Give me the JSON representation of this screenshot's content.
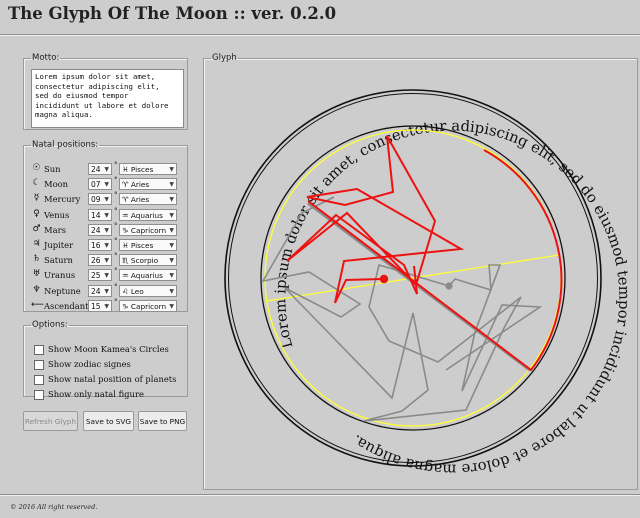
{
  "app": {
    "title": "The Glyph Of The Moon :: ver. 0.2.0"
  },
  "motto": {
    "legend": "Motto:",
    "text": "Lorem ipsum dolor sit amet,\nconsectetur adipiscing elit,\nsed do eiusmod tempor\nincididunt ut labore et dolore\nmagna aliqua."
  },
  "natal": {
    "legend": "Natal positions:",
    "degree_symbol": "°",
    "planets": [
      {
        "symbol": "☉",
        "icon": "sun-icon",
        "name": "Sun",
        "degree": "24",
        "sign_symbol": "♓",
        "sign": "Pisces"
      },
      {
        "symbol": "☾",
        "icon": "moon-icon",
        "name": "Moon",
        "degree": "07",
        "sign_symbol": "♈",
        "sign": "Aries"
      },
      {
        "symbol": "☿",
        "icon": "mercury-icon",
        "name": "Mercury",
        "degree": "09",
        "sign_symbol": "♈",
        "sign": "Aries"
      },
      {
        "symbol": "♀",
        "icon": "venus-icon",
        "name": "Venus",
        "degree": "14",
        "sign_symbol": "♒",
        "sign": "Aquarius"
      },
      {
        "symbol": "♂",
        "icon": "mars-icon",
        "name": "Mars",
        "degree": "24",
        "sign_symbol": "♑",
        "sign": "Capricorn"
      },
      {
        "symbol": "♃",
        "icon": "jupiter-icon",
        "name": "Jupiter",
        "degree": "16",
        "sign_symbol": "♓",
        "sign": "Pisces"
      },
      {
        "symbol": "♄",
        "icon": "saturn-icon",
        "name": "Saturn",
        "degree": "26",
        "sign_symbol": "♏",
        "sign": "Scorpio"
      },
      {
        "symbol": "♅",
        "icon": "uranus-icon",
        "name": "Uranus",
        "degree": "25",
        "sign_symbol": "♒",
        "sign": "Aquarius"
      },
      {
        "symbol": "♆",
        "icon": "neptune-icon",
        "name": "Neptune",
        "degree": "24",
        "sign_symbol": "♌",
        "sign": "Leo"
      },
      {
        "symbol": "⟵",
        "icon": "ascendant-arrow-icon",
        "name": "Ascendant",
        "degree": "15",
        "sign_symbol": "♑",
        "sign": "Capricorn"
      }
    ]
  },
  "options": {
    "legend": "Options:",
    "items": [
      {
        "label": "Show Moon Kamea's Circles",
        "checked": false
      },
      {
        "label": "Show zodiac signes",
        "checked": false
      },
      {
        "label": "Show natal position of planets",
        "checked": false
      },
      {
        "label": "Show only natal figure",
        "checked": false
      }
    ]
  },
  "buttons": {
    "refresh": "Refresh Glyph",
    "save_svg": "Save to SVG",
    "save_png": "Save to PNG"
  },
  "glyph": {
    "legend": "Glyph",
    "ring_text": "Lorem ipsum dolor sit amet, consectetur adipiscing elit, sed do eiusmod tempor incididunt ut labore et dolore magna aliqua.",
    "colors": {
      "red_figure": "#ee1111",
      "gray_figure": "#8a8a8a",
      "axis": "#ffff33",
      "ring": "#111111"
    }
  },
  "footer": {
    "text": "© 2016 All right reserved."
  }
}
